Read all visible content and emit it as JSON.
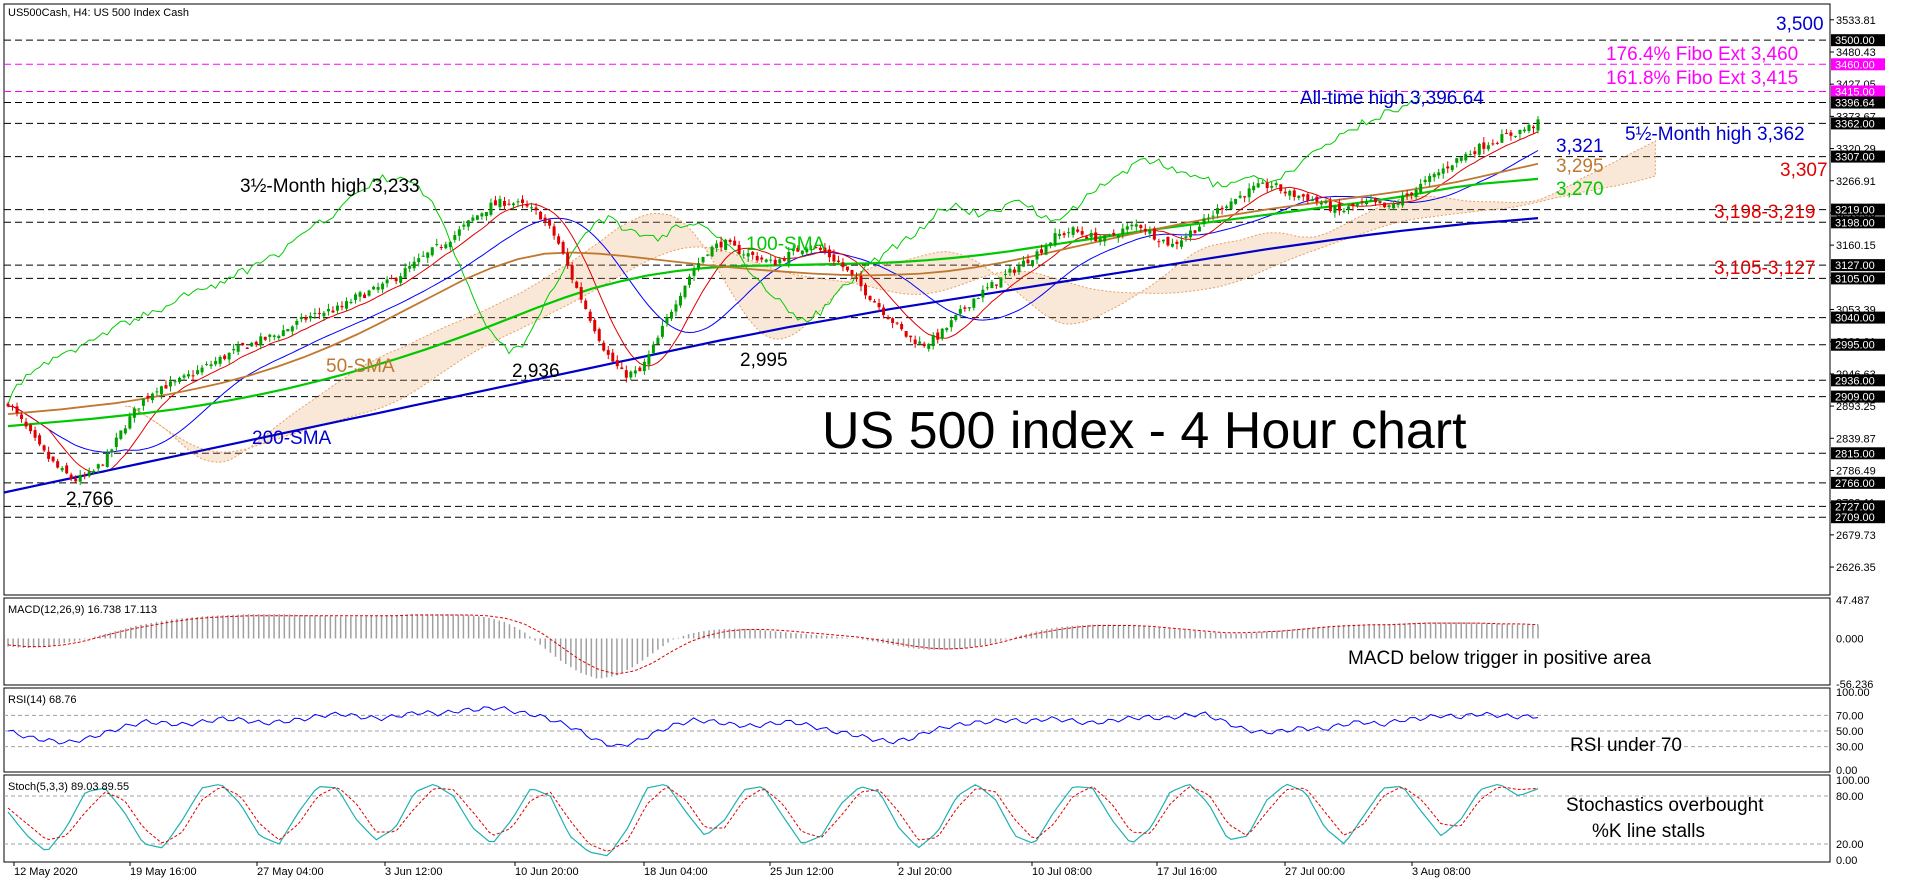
{
  "window": {
    "title": "US500Cash, H4:  US 500 Index Cash"
  },
  "colors": {
    "candle_up": "#00a000",
    "candle_down": "#e00000",
    "sma50": "#c07830",
    "sma100": "#00c800",
    "sma200": "#0000c8",
    "tenkan": "#e00000",
    "kijun": "#0000ff",
    "chikou": "#00cc00",
    "cloud": "#e8a060",
    "fibo": "#ff00ff",
    "level": "#000000",
    "rsi": "#0000ff",
    "stoch_k": "#20b0b0",
    "stoch_d": "#e00000",
    "macd_hist": "#a0a0a0",
    "macd_signal": "#e00000"
  },
  "chart_data": [
    {
      "type": "candlestick",
      "title": "US 500 index - 4 Hour chart",
      "header": "US500Cash, H4:  US 500 Index Cash",
      "ylim": [
        2580,
        3560
      ],
      "xaxis_labels": [
        "12 May 2020",
        "19 May 16:00",
        "27 May 04:00",
        "3 Jun 12:00",
        "10 Jun 20:00",
        "18 Jun 04:00",
        "25 Jun 12:00",
        "2 Jul 20:00",
        "10 Jul 08:00",
        "17 Jul 16:00",
        "27 Jul 00:00",
        "3 Aug 08:00"
      ],
      "price_axis_ticks": [
        "3533.81",
        "3480.43",
        "3427.05",
        "3373.67",
        "3320.29",
        "3266.91",
        "3213.53",
        "3160.15",
        "3106.77",
        "3053.39",
        "3000.01",
        "2946.63",
        "2893.25",
        "2839.87",
        "2786.49",
        "2733.11",
        "2679.73",
        "2626.35"
      ],
      "price_tags": [
        {
          "label": "3500.00",
          "value": 3500,
          "color": "#000000"
        },
        {
          "label": "3460.00",
          "value": 3460,
          "color": "#ff00ff"
        },
        {
          "label": "3415.00",
          "value": 3415,
          "color": "#ff00ff"
        },
        {
          "label": "3396.64",
          "value": 3396.64,
          "color": "#000000"
        },
        {
          "label": "3362.00",
          "value": 3362,
          "color": "#000000"
        },
        {
          "label": "3307.00",
          "value": 3307,
          "color": "#000000"
        },
        {
          "label": "3219.00",
          "value": 3219,
          "color": "#000000"
        },
        {
          "label": "3198.00",
          "value": 3198,
          "color": "#000000"
        },
        {
          "label": "3127.00",
          "value": 3127,
          "color": "#000000"
        },
        {
          "label": "3105.00",
          "value": 3105,
          "color": "#000000"
        },
        {
          "label": "3040.00",
          "value": 3040,
          "color": "#000000"
        },
        {
          "label": "2995.00",
          "value": 2995,
          "color": "#000000"
        },
        {
          "label": "2936.00",
          "value": 2936,
          "color": "#000000"
        },
        {
          "label": "2909.00",
          "value": 2909,
          "color": "#000000"
        },
        {
          "label": "2815.00",
          "value": 2815,
          "color": "#000000"
        },
        {
          "label": "2766.00",
          "value": 2766,
          "color": "#000000"
        },
        {
          "label": "2727.00",
          "value": 2727,
          "color": "#000000"
        },
        {
          "label": "2709.00",
          "value": 2709,
          "color": "#000000"
        }
      ],
      "levels": [
        {
          "value": 3500,
          "style": "dashed",
          "color": "#000000"
        },
        {
          "value": 3460,
          "style": "dashed",
          "color": "#ff00ff"
        },
        {
          "value": 3415,
          "style": "dashed",
          "color": "#ff00ff"
        },
        {
          "value": 3396.64,
          "style": "dashed",
          "color": "#000000"
        },
        {
          "value": 3362,
          "style": "dashed",
          "color": "#000000"
        },
        {
          "value": 3307,
          "style": "dashed",
          "color": "#000000"
        },
        {
          "value": 3219,
          "style": "dashed",
          "color": "#000000"
        },
        {
          "value": 3198,
          "style": "dashed",
          "color": "#000000"
        },
        {
          "value": 3127,
          "style": "dashed",
          "color": "#000000"
        },
        {
          "value": 3105,
          "style": "dashed",
          "color": "#000000"
        },
        {
          "value": 3040,
          "style": "dashed",
          "color": "#000000"
        },
        {
          "value": 2995,
          "style": "dashed",
          "color": "#000000"
        },
        {
          "value": 2936,
          "style": "dashed",
          "color": "#000000"
        },
        {
          "value": 2909,
          "style": "dashed",
          "color": "#000000"
        },
        {
          "value": 2815,
          "style": "dashed",
          "color": "#000000"
        },
        {
          "value": 2766,
          "style": "dashed",
          "color": "#000000"
        },
        {
          "value": 2727,
          "style": "dashed",
          "color": "#000000"
        },
        {
          "value": 2709,
          "style": "dashed",
          "color": "#000000"
        }
      ],
      "price_path": [
        2900,
        2860,
        2820,
        2790,
        2770,
        2780,
        2810,
        2860,
        2900,
        2925,
        2930,
        2945,
        2960,
        2975,
        2990,
        3000,
        3010,
        3025,
        3040,
        3050,
        3055,
        3075,
        3085,
        3100,
        3120,
        3140,
        3160,
        3180,
        3205,
        3225,
        3233,
        3225,
        3210,
        3170,
        3100,
        3040,
        2980,
        2945,
        2950,
        3000,
        3060,
        3110,
        3150,
        3165,
        3150,
        3140,
        3130,
        3145,
        3160,
        3150,
        3130,
        3100,
        3070,
        3040,
        3010,
        2995,
        3010,
        3040,
        3070,
        3090,
        3110,
        3130,
        3150,
        3175,
        3185,
        3175,
        3170,
        3185,
        3195,
        3175,
        3160,
        3180,
        3200,
        3225,
        3240,
        3255,
        3260,
        3245,
        3240,
        3230,
        3215,
        3225,
        3230,
        3220,
        3240,
        3260,
        3280,
        3300,
        3315,
        3330,
        3340,
        3350,
        3362
      ],
      "sma50": [
        2880,
        2884,
        2888,
        2893,
        2898,
        2905,
        2913,
        2922,
        2932,
        2944,
        2958,
        2974,
        2992,
        3012,
        3034,
        3057,
        3080,
        3103,
        3122,
        3137,
        3146,
        3148,
        3146,
        3142,
        3137,
        3132,
        3127,
        3123,
        3119,
        3116,
        3113,
        3111,
        3110,
        3111,
        3113,
        3117,
        3123,
        3131,
        3140,
        3150,
        3160,
        3170,
        3180,
        3189,
        3198,
        3206,
        3213,
        3220,
        3226,
        3232,
        3238,
        3244,
        3250,
        3257,
        3265,
        3275,
        3285,
        3295
      ],
      "sma100": [
        2860,
        2864,
        2868,
        2872,
        2877,
        2882,
        2888,
        2895,
        2903,
        2912,
        2922,
        2933,
        2945,
        2958,
        2972,
        2987,
        3003,
        3020,
        3038,
        3056,
        3073,
        3088,
        3100,
        3110,
        3117,
        3122,
        3125,
        3126,
        3127,
        3128,
        3129,
        3130,
        3132,
        3135,
        3139,
        3144,
        3150,
        3157,
        3164,
        3171,
        3178,
        3185,
        3191,
        3197,
        3203,
        3209,
        3215,
        3221,
        3227,
        3233,
        3240,
        3248,
        3256,
        3262,
        3266,
        3270
      ],
      "sma200": [
        2750,
        2762,
        2774,
        2786,
        2798,
        2810,
        2822,
        2834,
        2846,
        2858,
        2870,
        2882,
        2894,
        2906,
        2918,
        2930,
        2942,
        2954,
        2966,
        2978,
        2990,
        3002,
        3013,
        3024,
        3034,
        3044,
        3054,
        3063,
        3072,
        3081,
        3090,
        3099,
        3108,
        3117,
        3126,
        3135,
        3144,
        3153,
        3161,
        3169,
        3177,
        3184,
        3190,
        3196,
        3200,
        3205
      ],
      "annotations": [
        {
          "text": "3,500",
          "color": "#0000cc"
        },
        {
          "text": "176.4% Fibo Ext 3,460",
          "color": "#ff00ff"
        },
        {
          "text": "161.8% Fibo Ext 3,415",
          "color": "#ff00ff"
        },
        {
          "text": "All-time high 3,396.64",
          "color": "#0000cc"
        },
        {
          "text": "5½-Month high 3,362",
          "color": "#0000cc"
        },
        {
          "text": "3,321",
          "color": "#0000cc"
        },
        {
          "text": "3,307",
          "color": "#e00000"
        },
        {
          "text": "3,295",
          "color": "#c07830"
        },
        {
          "text": "3,270",
          "color": "#00c800"
        },
        {
          "text": "3,198-3,219",
          "color": "#e00000"
        },
        {
          "text": "3,105-3,127",
          "color": "#e00000"
        },
        {
          "text": "3½-Month high 3,233",
          "color": "#000000"
        },
        {
          "text": "100-SMA",
          "color": "#00c800"
        },
        {
          "text": "50-SMA",
          "color": "#c07830"
        },
        {
          "text": "200-SMA",
          "color": "#0000cc"
        },
        {
          "text": "2,936",
          "color": "#000000"
        },
        {
          "text": "2,995",
          "color": "#000000"
        },
        {
          "text": "2,766",
          "color": "#000000"
        }
      ]
    },
    {
      "type": "bar",
      "header": "MACD(12,26,9) 16.738 17.113",
      "ylim": [
        -56.236,
        47.487
      ],
      "ticks": [
        "47.487",
        "0.000",
        "-56.236"
      ],
      "annotation": "MACD below trigger in positive area",
      "histogram": [
        -10,
        -12,
        -10,
        -6,
        -2,
        4,
        10,
        16,
        20,
        24,
        26,
        28,
        29,
        30,
        30,
        30,
        29,
        28,
        27,
        27,
        28,
        29,
        30,
        30,
        30,
        29,
        26,
        20,
        8,
        -10,
        -28,
        -42,
        -50,
        -46,
        -34,
        -18,
        -2,
        6,
        10,
        12,
        12,
        10,
        8,
        6,
        4,
        2,
        0,
        -4,
        -8,
        -12,
        -14,
        -14,
        -12,
        -8,
        -2,
        4,
        10,
        14,
        16,
        17,
        17,
        16,
        14,
        12,
        10,
        8,
        6,
        6,
        8,
        10,
        12,
        14,
        16,
        17,
        17,
        18,
        19,
        20,
        20,
        20,
        19,
        18,
        17,
        17
      ],
      "signal": [
        -8,
        -10,
        -10,
        -8,
        -4,
        2,
        8,
        13,
        17,
        21,
        24,
        26,
        27,
        28,
        28,
        28,
        28,
        28,
        28,
        28,
        28,
        28,
        29,
        29,
        29,
        29,
        28,
        25,
        18,
        6,
        -10,
        -26,
        -38,
        -44,
        -40,
        -30,
        -16,
        -4,
        4,
        9,
        11,
        11,
        10,
        8,
        6,
        4,
        2,
        -1,
        -5,
        -9,
        -12,
        -13,
        -12,
        -9,
        -4,
        2,
        7,
        11,
        14,
        16,
        16,
        16,
        15,
        13,
        11,
        9,
        7,
        7,
        8,
        9,
        11,
        13,
        15,
        16,
        17,
        17,
        18,
        19,
        19,
        19,
        19,
        18,
        18,
        17
      ]
    },
    {
      "type": "line",
      "header": "RSI(14) 68.76",
      "ylim": [
        0,
        100
      ],
      "ticks": [
        "100.00",
        "70.00",
        "50.00",
        "30.00",
        "0.00"
      ],
      "annotation": "RSI under 70",
      "values": [
        50,
        42,
        38,
        35,
        40,
        48,
        56,
        62,
        60,
        58,
        62,
        66,
        64,
        60,
        62,
        65,
        70,
        72,
        68,
        66,
        70,
        74,
        72,
        76,
        78,
        80,
        74,
        70,
        62,
        52,
        38,
        30,
        36,
        48,
        58,
        64,
        62,
        58,
        56,
        60,
        62,
        56,
        50,
        46,
        40,
        36,
        40,
        50,
        56,
        60,
        62,
        64,
        62,
        66,
        64,
        60,
        62,
        66,
        68,
        66,
        70,
        72,
        62,
        52,
        48,
        50,
        54,
        52,
        58,
        62,
        58,
        64,
        66,
        70,
        68,
        72,
        70,
        68,
        69
      ]
    },
    {
      "type": "line",
      "header": "Stoch(5,3,3) 89.03 89.55",
      "ylim": [
        0,
        100
      ],
      "ticks": [
        "100.00",
        "80.00",
        "20.00",
        "0.00"
      ],
      "annotation": [
        "Stochastics overbought",
        "%K line stalls"
      ],
      "k_values": [
        60,
        30,
        10,
        40,
        85,
        90,
        60,
        20,
        15,
        50,
        90,
        95,
        70,
        30,
        20,
        60,
        92,
        90,
        50,
        25,
        40,
        85,
        95,
        80,
        40,
        20,
        50,
        90,
        80,
        30,
        10,
        5,
        40,
        90,
        95,
        60,
        30,
        50,
        88,
        92,
        55,
        20,
        30,
        70,
        92,
        85,
        40,
        15,
        35,
        80,
        95,
        75,
        30,
        20,
        60,
        92,
        90,
        50,
        20,
        40,
        85,
        95,
        70,
        25,
        30,
        75,
        95,
        85,
        40,
        20,
        55,
        90,
        92,
        60,
        30,
        50,
        88,
        95,
        80,
        89
      ],
      "d_values": [
        65,
        45,
        25,
        30,
        60,
        85,
        75,
        40,
        20,
        35,
        75,
        92,
        80,
        45,
        25,
        45,
        80,
        92,
        70,
        35,
        35,
        65,
        90,
        88,
        60,
        30,
        40,
        75,
        85,
        50,
        20,
        10,
        25,
        70,
        92,
        75,
        40,
        40,
        75,
        90,
        70,
        35,
        28,
        55,
        85,
        88,
        60,
        25,
        28,
        65,
        90,
        85,
        50,
        25,
        45,
        80,
        92,
        70,
        35,
        33,
        70,
        92,
        82,
        45,
        30,
        60,
        88,
        90,
        60,
        30,
        45,
        80,
        92,
        75,
        45,
        42,
        75,
        92,
        88,
        89.5
      ]
    }
  ]
}
